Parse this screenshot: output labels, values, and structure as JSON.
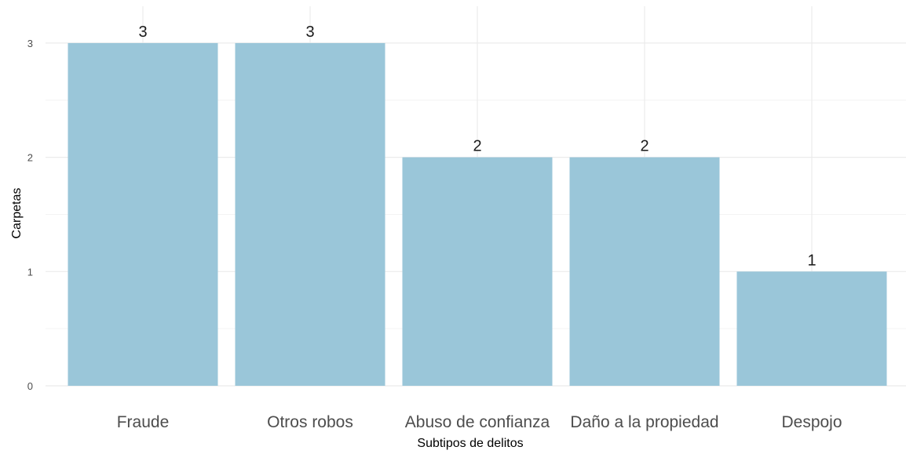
{
  "chart_data": {
    "type": "bar",
    "title": "",
    "xlabel": "Subtipos de delitos",
    "ylabel": "Carpetas",
    "categories": [
      "Fraude",
      "Otros robos",
      "Abuso de confianza",
      "Daño a la propiedad",
      "Despojo"
    ],
    "values": [
      3,
      3,
      2,
      2,
      1
    ],
    "data_labels": [
      "3",
      "3",
      "2",
      "2",
      "1"
    ],
    "yticks": [
      "0",
      "1",
      "2",
      "3"
    ],
    "ylim": [
      0,
      3.15
    ],
    "grid": true,
    "legend": "none",
    "colors": {
      "bar": "#9ac6d9",
      "grid_major": "#ebebeb",
      "grid_minor": "#f4f4f4"
    }
  }
}
